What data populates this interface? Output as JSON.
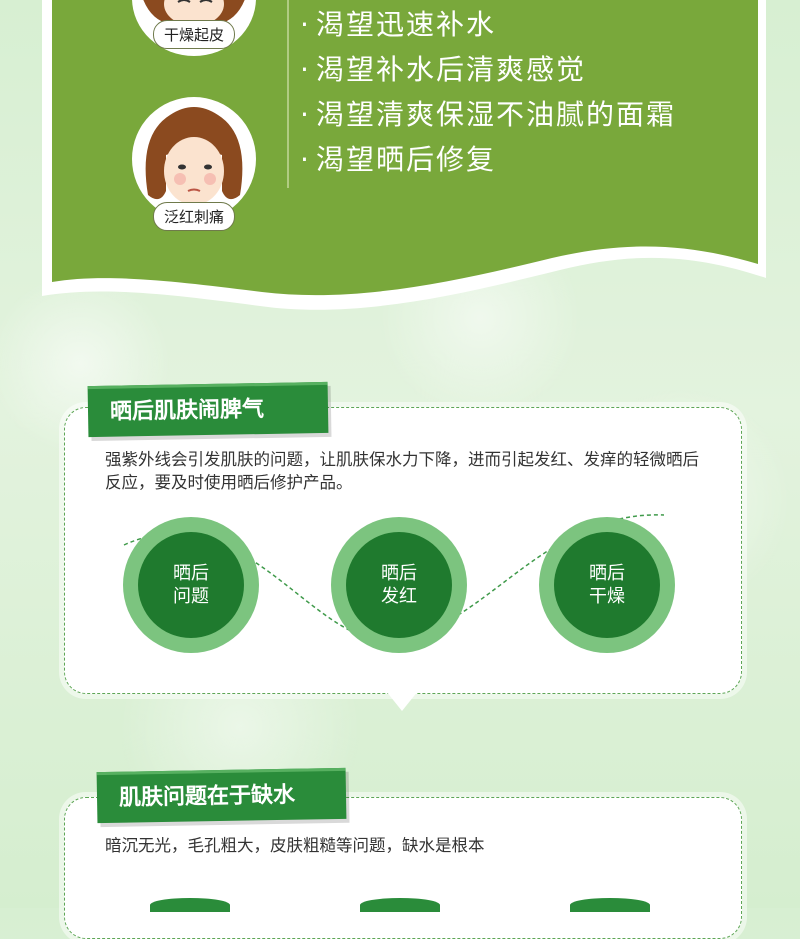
{
  "colors": {
    "panel_green": "#79a83b",
    "ribbon_green": "#2a8c3a",
    "circle_outer": "#7cc47f",
    "circle_inner": "#1f7a2e"
  },
  "top_panel": {
    "avatars": [
      {
        "label": "干燥起皮"
      },
      {
        "label": "泛红刺痛"
      }
    ],
    "desires": [
      "渴望迅速补水",
      "渴望补水后清爽感觉",
      "渴望清爽保湿不油腻的面霜",
      "渴望晒后修复"
    ]
  },
  "section1": {
    "title": "晒后肌肤闹脾气",
    "text": "强紫外线会引发肌肤的问题，让肌肤保水力下降，进而引起发红、发痒的轻微晒后反应，要及时使用晒后修护产品。",
    "circles": [
      {
        "line1": "晒后",
        "line2": "问题"
      },
      {
        "line1": "晒后",
        "line2": "发红"
      },
      {
        "line1": "晒后",
        "line2": "干燥"
      }
    ]
  },
  "section2": {
    "title": "肌肤问题在于缺水",
    "text": "暗沉无光，毛孔粗大，皮肤粗糙等问题，缺水是根本"
  }
}
